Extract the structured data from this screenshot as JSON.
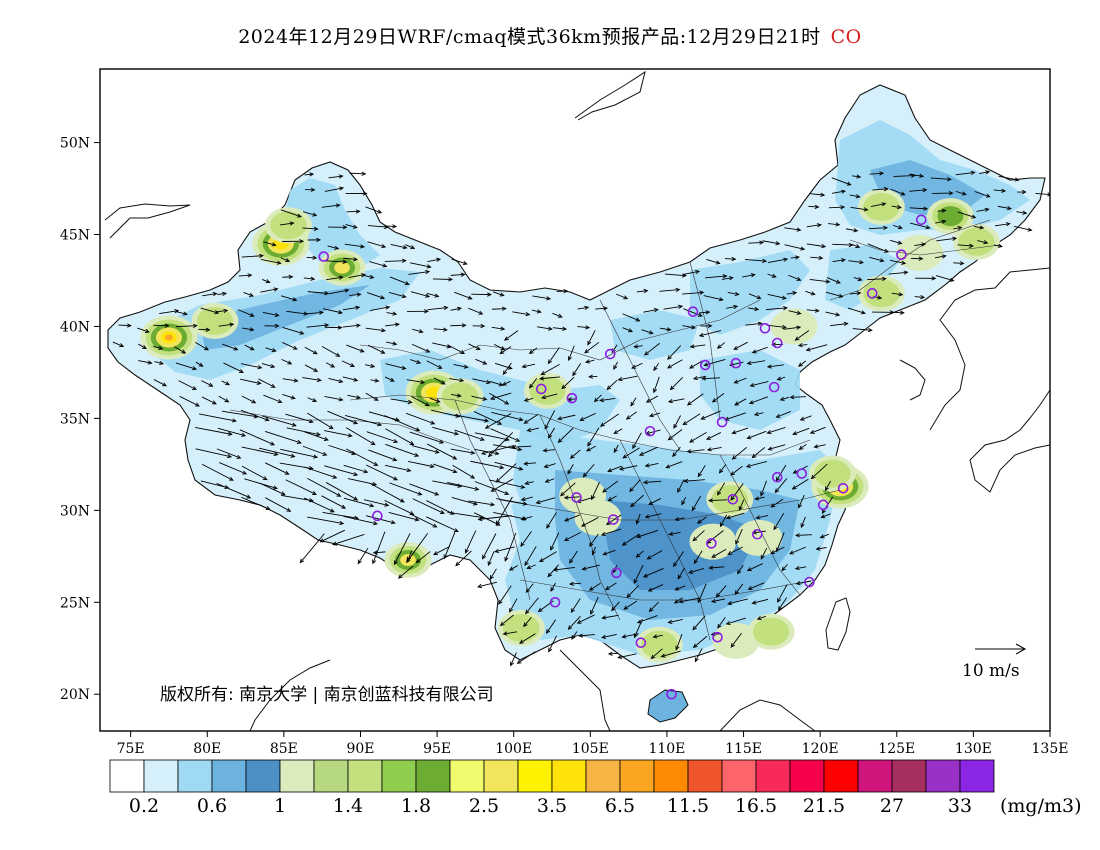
{
  "title": {
    "main": "2024年12月29日WRF/cmaq模式36km预报产品:12月29日21时",
    "pollutant": "CO"
  },
  "axes": {
    "lat_labels": [
      "50N",
      "45N",
      "40N",
      "35N",
      "30N",
      "25N",
      "20N"
    ],
    "lon_labels": [
      "75E",
      "80E",
      "85E",
      "90E",
      "95E",
      "100E",
      "105E",
      "110E",
      "115E",
      "120E",
      "125E",
      "130E",
      "135E"
    ],
    "lon_range": [
      73,
      135
    ],
    "lat_range": [
      18,
      54
    ]
  },
  "colorbar": {
    "colors": [
      "#ffffff",
      "#d6f0fb",
      "#9fd9f4",
      "#6cb3e0",
      "#4a8fc6",
      "#dcebbc",
      "#b6d97f",
      "#c2e07d",
      "#8fcd4f",
      "#6dac32",
      "#f2fb6e",
      "#f1e65b",
      "#fdf200",
      "#fee20a",
      "#f7b343",
      "#fba623",
      "#fd8a00",
      "#f1552c",
      "#fd656b",
      "#f82a5a",
      "#f6024b",
      "#fe0000",
      "#d0157d",
      "#a5305f",
      "#9a30c8",
      "#8a26e4"
    ],
    "labels": [
      "0.2",
      "0.6",
      "1",
      "1.4",
      "1.8",
      "2.5",
      "3.5",
      "6.5",
      "11.5",
      "16.5",
      "21.5",
      "27",
      "33"
    ],
    "unit": "(mg/m3)"
  },
  "wind_reference": "10 m/s",
  "copyright": "版权所有: 南京大学 | 南京创蓝科技有限公司",
  "stations": [
    [
      87.6,
      43.8
    ],
    [
      91.1,
      29.7
    ],
    [
      101.8,
      36.6
    ],
    [
      103.8,
      36.1
    ],
    [
      106.3,
      38.5
    ],
    [
      104.1,
      30.7
    ],
    [
      106.5,
      29.5
    ],
    [
      106.7,
      26.6
    ],
    [
      102.7,
      25.0
    ],
    [
      108.3,
      22.8
    ],
    [
      113.3,
      23.1
    ],
    [
      110.3,
      20.0
    ],
    [
      112.9,
      28.2
    ],
    [
      114.3,
      30.6
    ],
    [
      115.9,
      28.7
    ],
    [
      119.3,
      26.1
    ],
    [
      120.2,
      30.3
    ],
    [
      118.8,
      32.0
    ],
    [
      117.2,
      31.8
    ],
    [
      121.5,
      31.2
    ],
    [
      113.6,
      34.8
    ],
    [
      108.9,
      34.3
    ],
    [
      112.5,
      37.9
    ],
    [
      114.5,
      38.0
    ],
    [
      116.4,
      39.9
    ],
    [
      117.2,
      39.1
    ],
    [
      117.0,
      36.7
    ],
    [
      111.7,
      40.8
    ],
    [
      123.4,
      41.8
    ],
    [
      125.3,
      43.9
    ],
    [
      126.6,
      45.8
    ]
  ],
  "hotspots": [
    {
      "lon": 77.5,
      "lat": 39.4,
      "level": 16
    },
    {
      "lon": 80.5,
      "lat": 40.3,
      "level": 7
    },
    {
      "lon": 84.8,
      "lat": 44.5,
      "level": 13
    },
    {
      "lon": 85.3,
      "lat": 45.5,
      "level": 8
    },
    {
      "lon": 88.8,
      "lat": 43.2,
      "level": 11
    },
    {
      "lon": 94.8,
      "lat": 36.4,
      "level": 14
    },
    {
      "lon": 96.5,
      "lat": 36.2,
      "level": 7
    },
    {
      "lon": 93.1,
      "lat": 27.3,
      "level": 11
    },
    {
      "lon": 102.2,
      "lat": 36.5,
      "level": 7
    },
    {
      "lon": 121.3,
      "lat": 31.3,
      "level": 13
    },
    {
      "lon": 120.8,
      "lat": 32.0,
      "level": 8
    },
    {
      "lon": 124.0,
      "lat": 46.5,
      "level": 8
    },
    {
      "lon": 128.5,
      "lat": 46.0,
      "level": 9
    },
    {
      "lon": 124.0,
      "lat": 41.8,
      "level": 7
    },
    {
      "lon": 114.1,
      "lat": 30.6,
      "level": 7
    },
    {
      "lon": 113.0,
      "lat": 28.3,
      "level": 6
    },
    {
      "lon": 116.0,
      "lat": 28.5,
      "level": 6
    },
    {
      "lon": 109.5,
      "lat": 22.7,
      "level": 7
    },
    {
      "lon": 114.5,
      "lat": 22.9,
      "level": 6
    },
    {
      "lon": 116.8,
      "lat": 23.4,
      "level": 7
    },
    {
      "lon": 105.5,
      "lat": 29.6,
      "level": 6
    },
    {
      "lon": 104.5,
      "lat": 30.8,
      "level": 6
    },
    {
      "lon": 100.5,
      "lat": 23.6,
      "level": 7
    },
    {
      "lon": 118.3,
      "lat": 40.0,
      "level": 6
    },
    {
      "lon": 130.2,
      "lat": 44.6,
      "level": 7
    },
    {
      "lon": 126.5,
      "lat": 44.0,
      "level": 6
    }
  ]
}
